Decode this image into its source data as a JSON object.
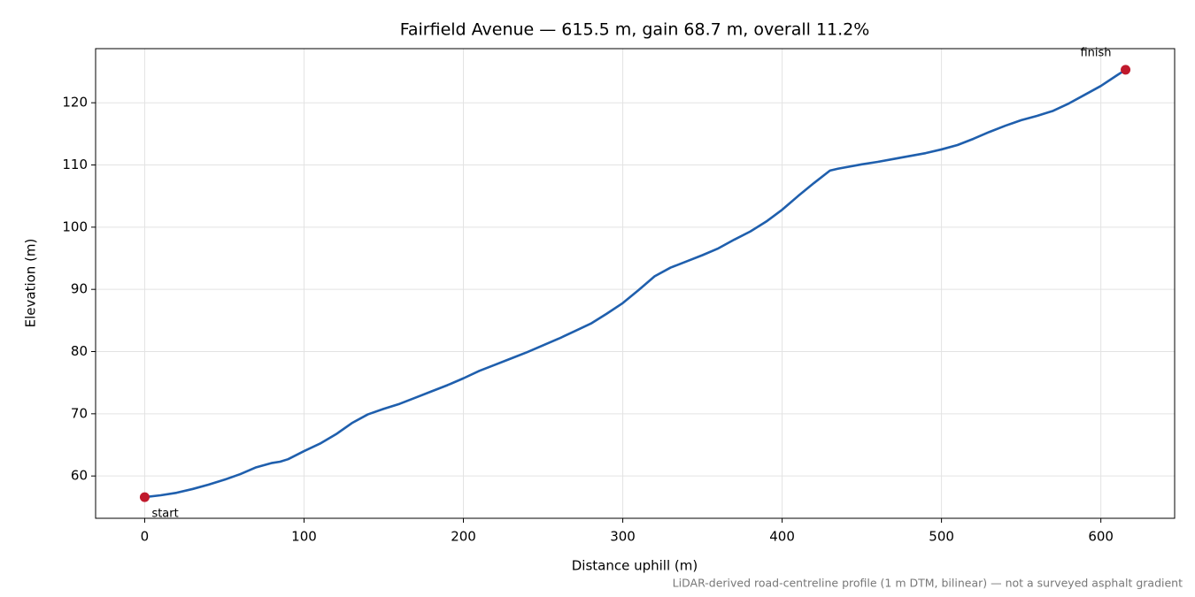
{
  "chart_data": {
    "type": "line",
    "title": "Fairfield Avenue — 615.5 m, gain 68.7 m, overall 11.2%",
    "xlabel": "Distance uphill (m)",
    "ylabel": "Elevation (m)",
    "note": "LiDAR-derived road-centreline profile (1 m DTM, bilinear) — not a surveyed asphalt gradient",
    "annotations": [
      "start",
      "finish"
    ],
    "x": [
      0,
      10,
      20,
      30,
      40,
      50,
      60,
      70,
      80,
      85,
      90,
      100,
      110,
      120,
      130,
      140,
      150,
      160,
      170,
      180,
      190,
      200,
      210,
      220,
      230,
      240,
      250,
      260,
      270,
      280,
      290,
      300,
      310,
      320,
      330,
      340,
      350,
      360,
      370,
      380,
      390,
      400,
      410,
      420,
      430,
      435,
      450,
      460,
      475,
      490,
      500,
      510,
      520,
      530,
      540,
      550,
      560,
      570,
      580,
      590,
      600,
      610,
      615.5
    ],
    "values": [
      56.6,
      56.9,
      57.3,
      57.9,
      58.6,
      59.4,
      60.3,
      61.4,
      62.1,
      62.3,
      62.7,
      64.0,
      65.2,
      66.7,
      68.5,
      69.9,
      70.8,
      71.6,
      72.6,
      73.6,
      74.6,
      75.7,
      76.9,
      77.9,
      78.9,
      79.9,
      81.0,
      82.1,
      83.3,
      84.5,
      86.1,
      87.8,
      89.9,
      92.1,
      93.5,
      94.5,
      95.5,
      96.6,
      98.0,
      99.3,
      100.9,
      102.8,
      105.0,
      107.1,
      109.1,
      109.4,
      110.1,
      110.5,
      111.2,
      111.9,
      112.5,
      113.2,
      114.2,
      115.3,
      116.3,
      117.2,
      117.9,
      118.7,
      119.9,
      121.3,
      122.7,
      124.4,
      125.3
    ],
    "color": "#1f5fad",
    "marker_color": "#c0192c",
    "xlim": [
      -30.8,
      646.3
    ],
    "ylim": [
      53.2,
      128.7
    ],
    "xticks": [
      0,
      100,
      200,
      300,
      400,
      500,
      600
    ],
    "yticks": [
      60,
      70,
      80,
      90,
      100,
      110,
      120
    ],
    "grid": true
  }
}
